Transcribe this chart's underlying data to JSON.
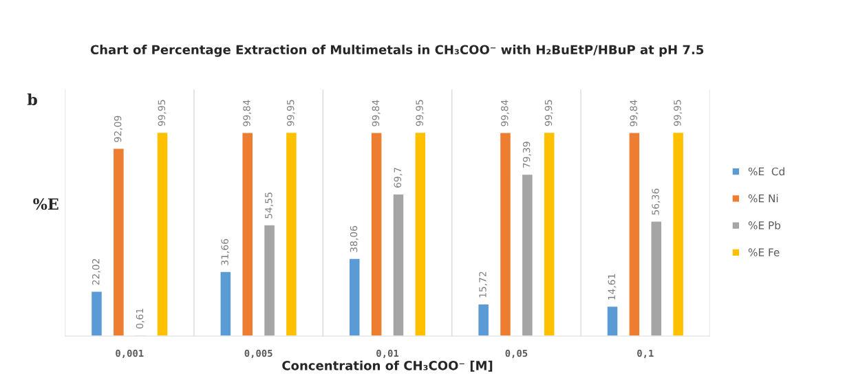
{
  "chart_data": {
    "type": "bar",
    "title": "Chart of Percentage Extraction of Multimetals in CH₃COO⁻ with H₂BuEtP/HBuP at pH 7.5",
    "xlabel": "Concentration of CH₃COO⁻ [M]",
    "ylabel": "%E",
    "annotations": [
      "b"
    ],
    "categories": [
      "0,001",
      "0,005",
      "0,01",
      "0,05",
      "0,1"
    ],
    "series": [
      {
        "name": "%E  Cd",
        "color": "#5b9bd5",
        "values": [
          22.02,
          31.66,
          38.06,
          15.72,
          14.61
        ],
        "value_labels": [
          "22,02",
          "31,66",
          "38,06",
          "15,72",
          "14,61"
        ]
      },
      {
        "name": "%E Ni",
        "color": "#ed7d31",
        "values": [
          92.09,
          99.84,
          99.84,
          99.84,
          99.84
        ],
        "value_labels": [
          "92,09",
          "99,84",
          "99,84",
          "99,84",
          "99,84"
        ]
      },
      {
        "name": "%E Pb",
        "color": "#a5a5a5",
        "values": [
          0.61,
          54.55,
          69.7,
          79.39,
          56.36
        ],
        "value_labels": [
          "0,61",
          "54,55",
          "69,7",
          "79,39",
          "56,36"
        ]
      },
      {
        "name": "%E Fe",
        "color": "#ffc000",
        "values": [
          99.95,
          99.95,
          99.95,
          99.95,
          99.95
        ],
        "value_labels": [
          "99,95",
          "99,95",
          "99,95",
          "99,95",
          "99,95"
        ]
      }
    ],
    "grid": "x",
    "legend": "right"
  }
}
